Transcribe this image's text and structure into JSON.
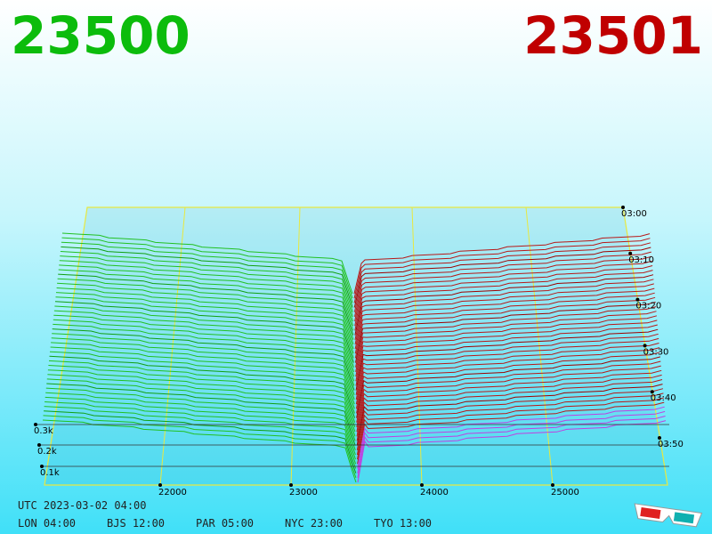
{
  "bid_price": "23500",
  "ask_price": "23501",
  "price_axis": [
    "22000",
    "23000",
    "24000",
    "25000"
  ],
  "depth_axis": [
    "0.3k",
    "0.2k",
    "0.1k"
  ],
  "time_axis": [
    "03:00",
    "03:10",
    "03:20",
    "03:30",
    "03:40",
    "03:50"
  ],
  "footer": {
    "utc": "UTC 2023-03-02 04:00",
    "clocks": [
      "LON 04:00",
      "BJS 12:00",
      "PAR 05:00",
      "NYC 23:00",
      "TYO 13:00"
    ]
  }
}
